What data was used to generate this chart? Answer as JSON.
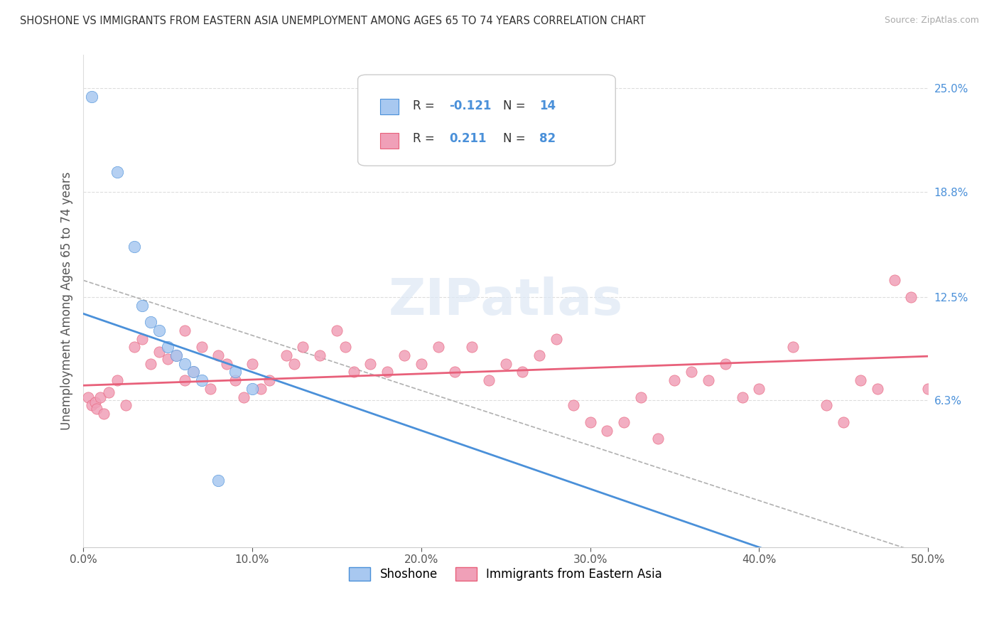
{
  "title": "SHOSHONE VS IMMIGRANTS FROM EASTERN ASIA UNEMPLOYMENT AMONG AGES 65 TO 74 YEARS CORRELATION CHART",
  "source": "Source: ZipAtlas.com",
  "ylabel": "Unemployment Among Ages 65 to 74 years",
  "xlim": [
    0.0,
    50.0
  ],
  "ylim": [
    -2.5,
    27.0
  ],
  "ytick_right_labels": [
    "25.0%",
    "18.8%",
    "12.5%",
    "6.3%"
  ],
  "ytick_right_values": [
    25.0,
    18.8,
    12.5,
    6.3
  ],
  "background_color": "#ffffff",
  "watermark": "ZIPatlas",
  "blue_color": "#a8c8f0",
  "pink_color": "#f0a0b8",
  "blue_line_color": "#4a90d9",
  "pink_line_color": "#e8607a",
  "blue_trend_m": -0.35,
  "blue_trend_b": 11.5,
  "pink_trend_m": 0.035,
  "pink_trend_b": 7.2,
  "diag_x0": 0,
  "diag_x1": 50,
  "diag_y0": 13.5,
  "diag_y1": -3.0,
  "shoshone_x": [
    0.5,
    2.0,
    3.0,
    3.5,
    4.0,
    4.5,
    5.0,
    5.5,
    6.0,
    6.5,
    7.0,
    8.0,
    9.0,
    10.0
  ],
  "shoshone_y": [
    24.5,
    20.0,
    15.5,
    12.0,
    11.0,
    10.5,
    9.5,
    9.0,
    8.5,
    8.0,
    7.5,
    1.5,
    8.0,
    7.0
  ],
  "immigrants_x": [
    0.3,
    0.5,
    0.7,
    0.8,
    1.0,
    1.2,
    1.5,
    2.0,
    2.5,
    3.0,
    3.5,
    4.0,
    4.5,
    5.0,
    5.5,
    6.0,
    6.0,
    6.5,
    7.0,
    7.5,
    8.0,
    8.5,
    9.0,
    9.5,
    10.0,
    10.5,
    11.0,
    12.0,
    12.5,
    13.0,
    14.0,
    15.0,
    15.5,
    16.0,
    17.0,
    18.0,
    19.0,
    20.0,
    21.0,
    22.0,
    23.0,
    24.0,
    25.0,
    26.0,
    27.0,
    28.0,
    29.0,
    30.0,
    31.0,
    32.0,
    33.0,
    34.0,
    35.0,
    36.0,
    37.0,
    38.0,
    39.0,
    40.0,
    42.0,
    44.0,
    45.0,
    46.0,
    47.0,
    48.0,
    49.0,
    50.0
  ],
  "immigrants_y": [
    6.5,
    6.0,
    6.2,
    5.8,
    6.5,
    5.5,
    6.8,
    7.5,
    6.0,
    9.5,
    10.0,
    8.5,
    9.2,
    8.8,
    9.0,
    10.5,
    7.5,
    8.0,
    9.5,
    7.0,
    9.0,
    8.5,
    7.5,
    6.5,
    8.5,
    7.0,
    7.5,
    9.0,
    8.5,
    9.5,
    9.0,
    10.5,
    9.5,
    8.0,
    8.5,
    8.0,
    9.0,
    8.5,
    9.5,
    8.0,
    9.5,
    7.5,
    8.5,
    8.0,
    9.0,
    10.0,
    6.0,
    5.0,
    4.5,
    5.0,
    6.5,
    4.0,
    7.5,
    8.0,
    7.5,
    8.5,
    6.5,
    7.0,
    9.5,
    6.0,
    5.0,
    7.5,
    7.0,
    13.5,
    12.5,
    7.0
  ]
}
